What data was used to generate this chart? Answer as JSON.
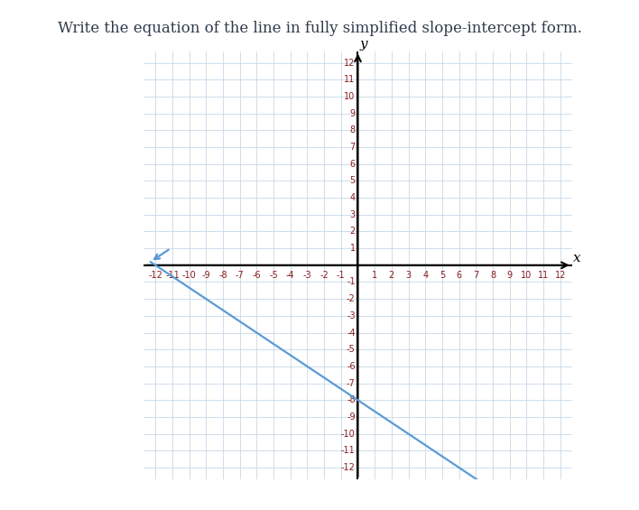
{
  "title": "Write the equation of the line in fully simplified slope-intercept form.",
  "title_fontsize": 12,
  "title_color": "#2e3a4a",
  "xmin": -12,
  "xmax": 12,
  "ymin": -12,
  "ymax": 12,
  "slope": -0.6667,
  "intercept": -8,
  "line_x_start": -12.3,
  "line_x_end": 7.3,
  "line_color": "#5b9bd5",
  "line_width": 1.6,
  "grid_color": "#c8d8e8",
  "grid_lw": 0.6,
  "axis_color": "#000000",
  "axis_lw": 1.5,
  "background_color": "#ffffff",
  "tick_color": "#8b1a1a",
  "tick_fontsize": 7,
  "xlabel": "x",
  "ylabel": "y",
  "axis_label_fontsize": 11,
  "arrow_mutation_scale": 10
}
